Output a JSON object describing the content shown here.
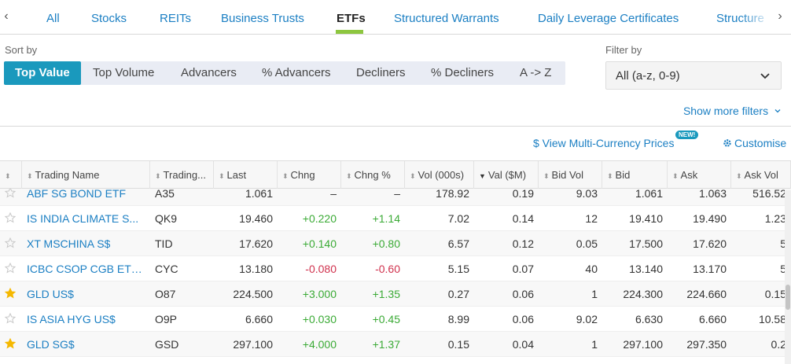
{
  "tabs": {
    "prev_arrow": "‹",
    "next_arrow": "›",
    "items": [
      {
        "label": "All"
      },
      {
        "label": "Stocks"
      },
      {
        "label": "REITs"
      },
      {
        "label": "Business Trusts"
      },
      {
        "label": "ETFs",
        "active": true
      },
      {
        "label": "Structured Warrants"
      },
      {
        "label": "Daily Leverage Certificates"
      },
      {
        "label": "Structure"
      }
    ]
  },
  "sort": {
    "label": "Sort by",
    "options": [
      "Top Value",
      "Top Volume",
      "Advancers",
      "% Advancers",
      "Decliners",
      "% Decliners",
      "A -> Z"
    ],
    "active": "Top Value"
  },
  "filter": {
    "label": "Filter by",
    "value": "All (a-z, 0-9)",
    "more_label": "Show more filters"
  },
  "actions": {
    "multi_currency_label": "$ View Multi-Currency Prices",
    "new_badge": "NEW!",
    "customise_label": "Customise"
  },
  "table": {
    "columns": [
      {
        "label": "",
        "sort": "none"
      },
      {
        "label": "Trading Name",
        "sort": "none"
      },
      {
        "label": "Trading...",
        "sort": "none"
      },
      {
        "label": "Last",
        "sort": "none"
      },
      {
        "label": "Chng",
        "sort": "none"
      },
      {
        "label": "Chng %",
        "sort": "none"
      },
      {
        "label": "Vol (000s)",
        "sort": "none"
      },
      {
        "label": "Val ($M)",
        "sort": "desc"
      },
      {
        "label": "Bid Vol",
        "sort": "none"
      },
      {
        "label": "Bid",
        "sort": "none"
      },
      {
        "label": "Ask",
        "sort": "none"
      },
      {
        "label": "Ask Vol",
        "sort": "none"
      }
    ],
    "rows": [
      {
        "starred": false,
        "name": "ABF SG BOND ETF",
        "code": "A35",
        "last": "1.061",
        "chng": "–",
        "chng_pct": "–",
        "dir": "none",
        "vol": "178.92",
        "val": "0.19",
        "bid_vol": "9.03",
        "bid": "1.061",
        "ask": "1.063",
        "ask_vol": "516.52"
      },
      {
        "starred": false,
        "name": "IS INDIA CLIMATE S...",
        "code": "QK9",
        "last": "19.460",
        "chng": "+0.220",
        "chng_pct": "+1.14",
        "dir": "pos",
        "vol": "7.02",
        "val": "0.14",
        "bid_vol": "12",
        "bid": "19.410",
        "ask": "19.490",
        "ask_vol": "1.23"
      },
      {
        "starred": false,
        "name": "XT MSCHINA S$",
        "code": "TID",
        "last": "17.620",
        "chng": "+0.140",
        "chng_pct": "+0.80",
        "dir": "pos",
        "vol": "6.57",
        "val": "0.12",
        "bid_vol": "0.05",
        "bid": "17.500",
        "ask": "17.620",
        "ask_vol": "5"
      },
      {
        "starred": false,
        "name": "ICBC CSOP CGB ETF...",
        "code": "CYC",
        "last": "13.180",
        "chng": "-0.080",
        "chng_pct": "-0.60",
        "dir": "neg",
        "vol": "5.15",
        "val": "0.07",
        "bid_vol": "40",
        "bid": "13.140",
        "ask": "13.170",
        "ask_vol": "5"
      },
      {
        "starred": true,
        "name": "GLD US$",
        "code": "O87",
        "last": "224.500",
        "chng": "+3.000",
        "chng_pct": "+1.35",
        "dir": "pos",
        "vol": "0.27",
        "val": "0.06",
        "bid_vol": "1",
        "bid": "224.300",
        "ask": "224.660",
        "ask_vol": "0.15"
      },
      {
        "starred": false,
        "name": "IS ASIA HYG US$",
        "code": "O9P",
        "last": "6.660",
        "chng": "+0.030",
        "chng_pct": "+0.45",
        "dir": "pos",
        "vol": "8.99",
        "val": "0.06",
        "bid_vol": "9.02",
        "bid": "6.630",
        "ask": "6.660",
        "ask_vol": "10.58"
      },
      {
        "starred": true,
        "name": "GLD SG$",
        "code": "GSD",
        "last": "297.100",
        "chng": "+4.000",
        "chng_pct": "+1.37",
        "dir": "pos",
        "vol": "0.15",
        "val": "0.04",
        "bid_vol": "1",
        "bid": "297.100",
        "ask": "297.350",
        "ask_vol": "0.2"
      }
    ]
  },
  "colors": {
    "accent": "#1a99bd",
    "link": "#1b7fc3",
    "positive": "#3aaa35",
    "negative": "#d0314d",
    "active_tab_underline": "#8dc63f",
    "star_filled": "#f5b800",
    "star_empty": "#c8c8c8"
  }
}
